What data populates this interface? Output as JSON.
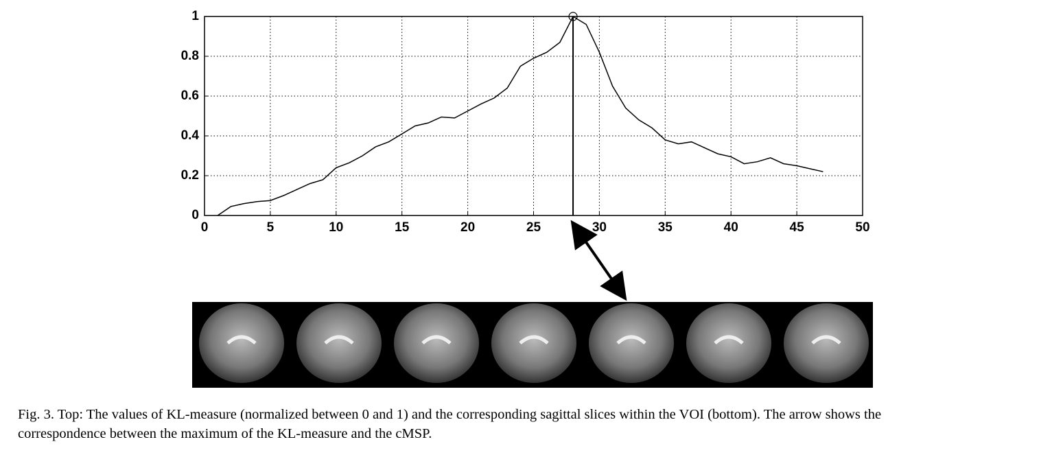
{
  "chart_data": {
    "type": "line",
    "x": [
      1,
      2,
      3,
      4,
      5,
      6,
      7,
      8,
      9,
      10,
      11,
      12,
      13,
      14,
      15,
      16,
      17,
      18,
      19,
      20,
      21,
      22,
      23,
      24,
      25,
      26,
      27,
      28,
      29,
      30,
      31,
      32,
      33,
      34,
      35,
      36,
      37,
      38,
      39,
      40,
      41,
      42,
      43,
      44,
      45,
      46,
      47
    ],
    "values": [
      0,
      0.045,
      0.06,
      0.07,
      0.075,
      0.1,
      0.13,
      0.16,
      0.18,
      0.24,
      0.265,
      0.3,
      0.345,
      0.37,
      0.41,
      0.45,
      0.465,
      0.495,
      0.49,
      0.525,
      0.56,
      0.59,
      0.64,
      0.75,
      0.79,
      0.82,
      0.87,
      1.0,
      0.96,
      0.82,
      0.65,
      0.54,
      0.48,
      0.44,
      0.38,
      0.36,
      0.37,
      0.34,
      0.31,
      0.295,
      0.26,
      0.27,
      0.29,
      0.26,
      0.25,
      0.235,
      0.22
    ],
    "color": "#000000",
    "xlim": [
      0,
      50
    ],
    "xticks": [
      0,
      5,
      10,
      15,
      20,
      25,
      30,
      35,
      40,
      45,
      50
    ],
    "ylim": [
      0,
      1
    ],
    "yticks": [
      0,
      0.2,
      0.4,
      0.6,
      0.8,
      1
    ],
    "grid": true
  },
  "caption_lines": [
    "Fig. 3.  Top: The values of KL-measure (normalized between 0 and 1) and the corresponding sagittal slices within the VOI (bottom). The arrow shows the",
    "correspondence between the maximum of the KL-measure and the cMSP."
  ]
}
